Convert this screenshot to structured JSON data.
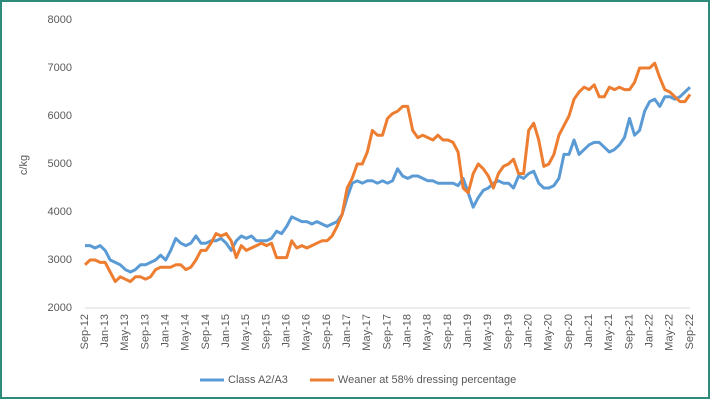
{
  "chart_data": {
    "type": "line",
    "y_label": "c/kg",
    "categories": [
      "Sep-12",
      null,
      null,
      null,
      "Jan-13",
      null,
      null,
      null,
      "May-13",
      null,
      null,
      null,
      "Sep-13",
      null,
      null,
      null,
      "Jan-14",
      null,
      null,
      null,
      "May-14",
      null,
      null,
      null,
      "Sep-14",
      null,
      null,
      null,
      "Jan-15",
      null,
      null,
      null,
      "May-15",
      null,
      null,
      null,
      "Sep-15",
      null,
      null,
      null,
      "Jan-16",
      null,
      null,
      null,
      "May-16",
      null,
      null,
      null,
      "Sep-16",
      null,
      null,
      null,
      "Jan-17",
      null,
      null,
      null,
      "May-17",
      null,
      null,
      null,
      "Sep-17",
      null,
      null,
      null,
      "Jan-18",
      null,
      null,
      null,
      "May-18",
      null,
      null,
      null,
      "Sep-18",
      null,
      null,
      null,
      "Jan-19",
      null,
      null,
      null,
      "May-19",
      null,
      null,
      null,
      "Sep-19",
      null,
      null,
      null,
      "Jan-20",
      null,
      null,
      null,
      "May-20",
      null,
      null,
      null,
      "Sep-20",
      null,
      null,
      null,
      "Jan-21",
      null,
      null,
      null,
      "May-21",
      null,
      null,
      null,
      "Sep-21",
      null,
      null,
      null,
      "Jan-22",
      null,
      null,
      null,
      "May-22",
      null,
      null,
      null,
      "Sep-22"
    ],
    "series": [
      {
        "name": "Class A2/A3",
        "color": "#5b9bd5",
        "values": [
          3300,
          3300,
          3250,
          3300,
          3200,
          3000,
          2950,
          2900,
          2800,
          2750,
          2800,
          2900,
          2900,
          2950,
          3000,
          3100,
          3000,
          3200,
          3450,
          3350,
          3300,
          3350,
          3500,
          3350,
          3350,
          3400,
          3400,
          3450,
          3350,
          3200,
          3400,
          3500,
          3450,
          3500,
          3400,
          3400,
          3400,
          3450,
          3600,
          3550,
          3700,
          3900,
          3850,
          3800,
          3800,
          3750,
          3800,
          3750,
          3700,
          3750,
          3800,
          3950,
          4300,
          4600,
          4650,
          4600,
          4650,
          4650,
          4600,
          4650,
          4600,
          4650,
          4900,
          4750,
          4700,
          4750,
          4750,
          4700,
          4650,
          4650,
          4600,
          4600,
          4600,
          4600,
          4550,
          4700,
          4400,
          4100,
          4300,
          4450,
          4500,
          4600,
          4650,
          4600,
          4600,
          4500,
          4750,
          4700,
          4800,
          4850,
          4600,
          4500,
          4500,
          4550,
          4700,
          5200,
          5200,
          5500,
          5200,
          5300,
          5400,
          5450,
          5450,
          5350,
          5250,
          5300,
          5400,
          5550,
          5950,
          5600,
          5700,
          6100,
          6300,
          6350,
          6200,
          6400,
          6400,
          6350,
          6400,
          6500,
          6600
        ]
      },
      {
        "name": "Weaner at 58% dressing percentage",
        "color": "#ed7d31",
        "values": [
          2900,
          3000,
          3000,
          2950,
          2950,
          2750,
          2550,
          2650,
          2600,
          2550,
          2650,
          2650,
          2600,
          2650,
          2800,
          2850,
          2850,
          2850,
          2900,
          2900,
          2800,
          2850,
          3000,
          3200,
          3200,
          3350,
          3550,
          3500,
          3550,
          3400,
          3050,
          3300,
          3200,
          3250,
          3300,
          3350,
          3300,
          3350,
          3050,
          3050,
          3050,
          3400,
          3250,
          3300,
          3250,
          3300,
          3350,
          3400,
          3400,
          3500,
          3700,
          3950,
          4500,
          4700,
          5000,
          5000,
          5250,
          5700,
          5600,
          5600,
          5950,
          6050,
          6100,
          6200,
          6200,
          5700,
          5550,
          5600,
          5550,
          5500,
          5600,
          5500,
          5500,
          5450,
          5250,
          4500,
          4400,
          4800,
          5000,
          4900,
          4750,
          4500,
          4800,
          4950,
          5000,
          5100,
          4800,
          4800,
          5700,
          5850,
          5500,
          4950,
          5000,
          5200,
          5600,
          5800,
          6000,
          6350,
          6500,
          6600,
          6550,
          6650,
          6400,
          6400,
          6600,
          6550,
          6600,
          6550,
          6550,
          6700,
          7000,
          7000,
          7000,
          7100,
          6800,
          6550,
          6500,
          6400,
          6300,
          6300,
          6450
        ]
      }
    ],
    "ylim": [
      2000,
      8000
    ],
    "yticks": [
      2000,
      3000,
      4000,
      5000,
      6000,
      7000,
      8000
    ],
    "grid": false
  }
}
